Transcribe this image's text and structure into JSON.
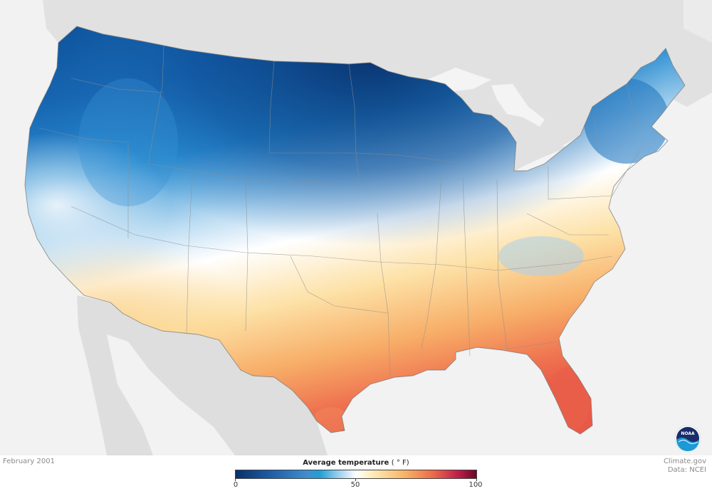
{
  "map": {
    "title": "Average temperature",
    "unit": "( ° F)",
    "date": "February 2001",
    "region": "Contiguous United States"
  },
  "legend": {
    "min": 0,
    "max": 100,
    "ticks": [
      "0",
      "50",
      "100"
    ],
    "colors": [
      "#08306b",
      "#1f5fa8",
      "#1fa0d8",
      "#ffffff",
      "#f9b565",
      "#ee6a4a",
      "#6a0628"
    ]
  },
  "credits": {
    "site": "Climate.gov",
    "data": "Data: NCEI"
  },
  "logo": {
    "icon": "noaa-logo-icon",
    "text": "NOAA"
  }
}
